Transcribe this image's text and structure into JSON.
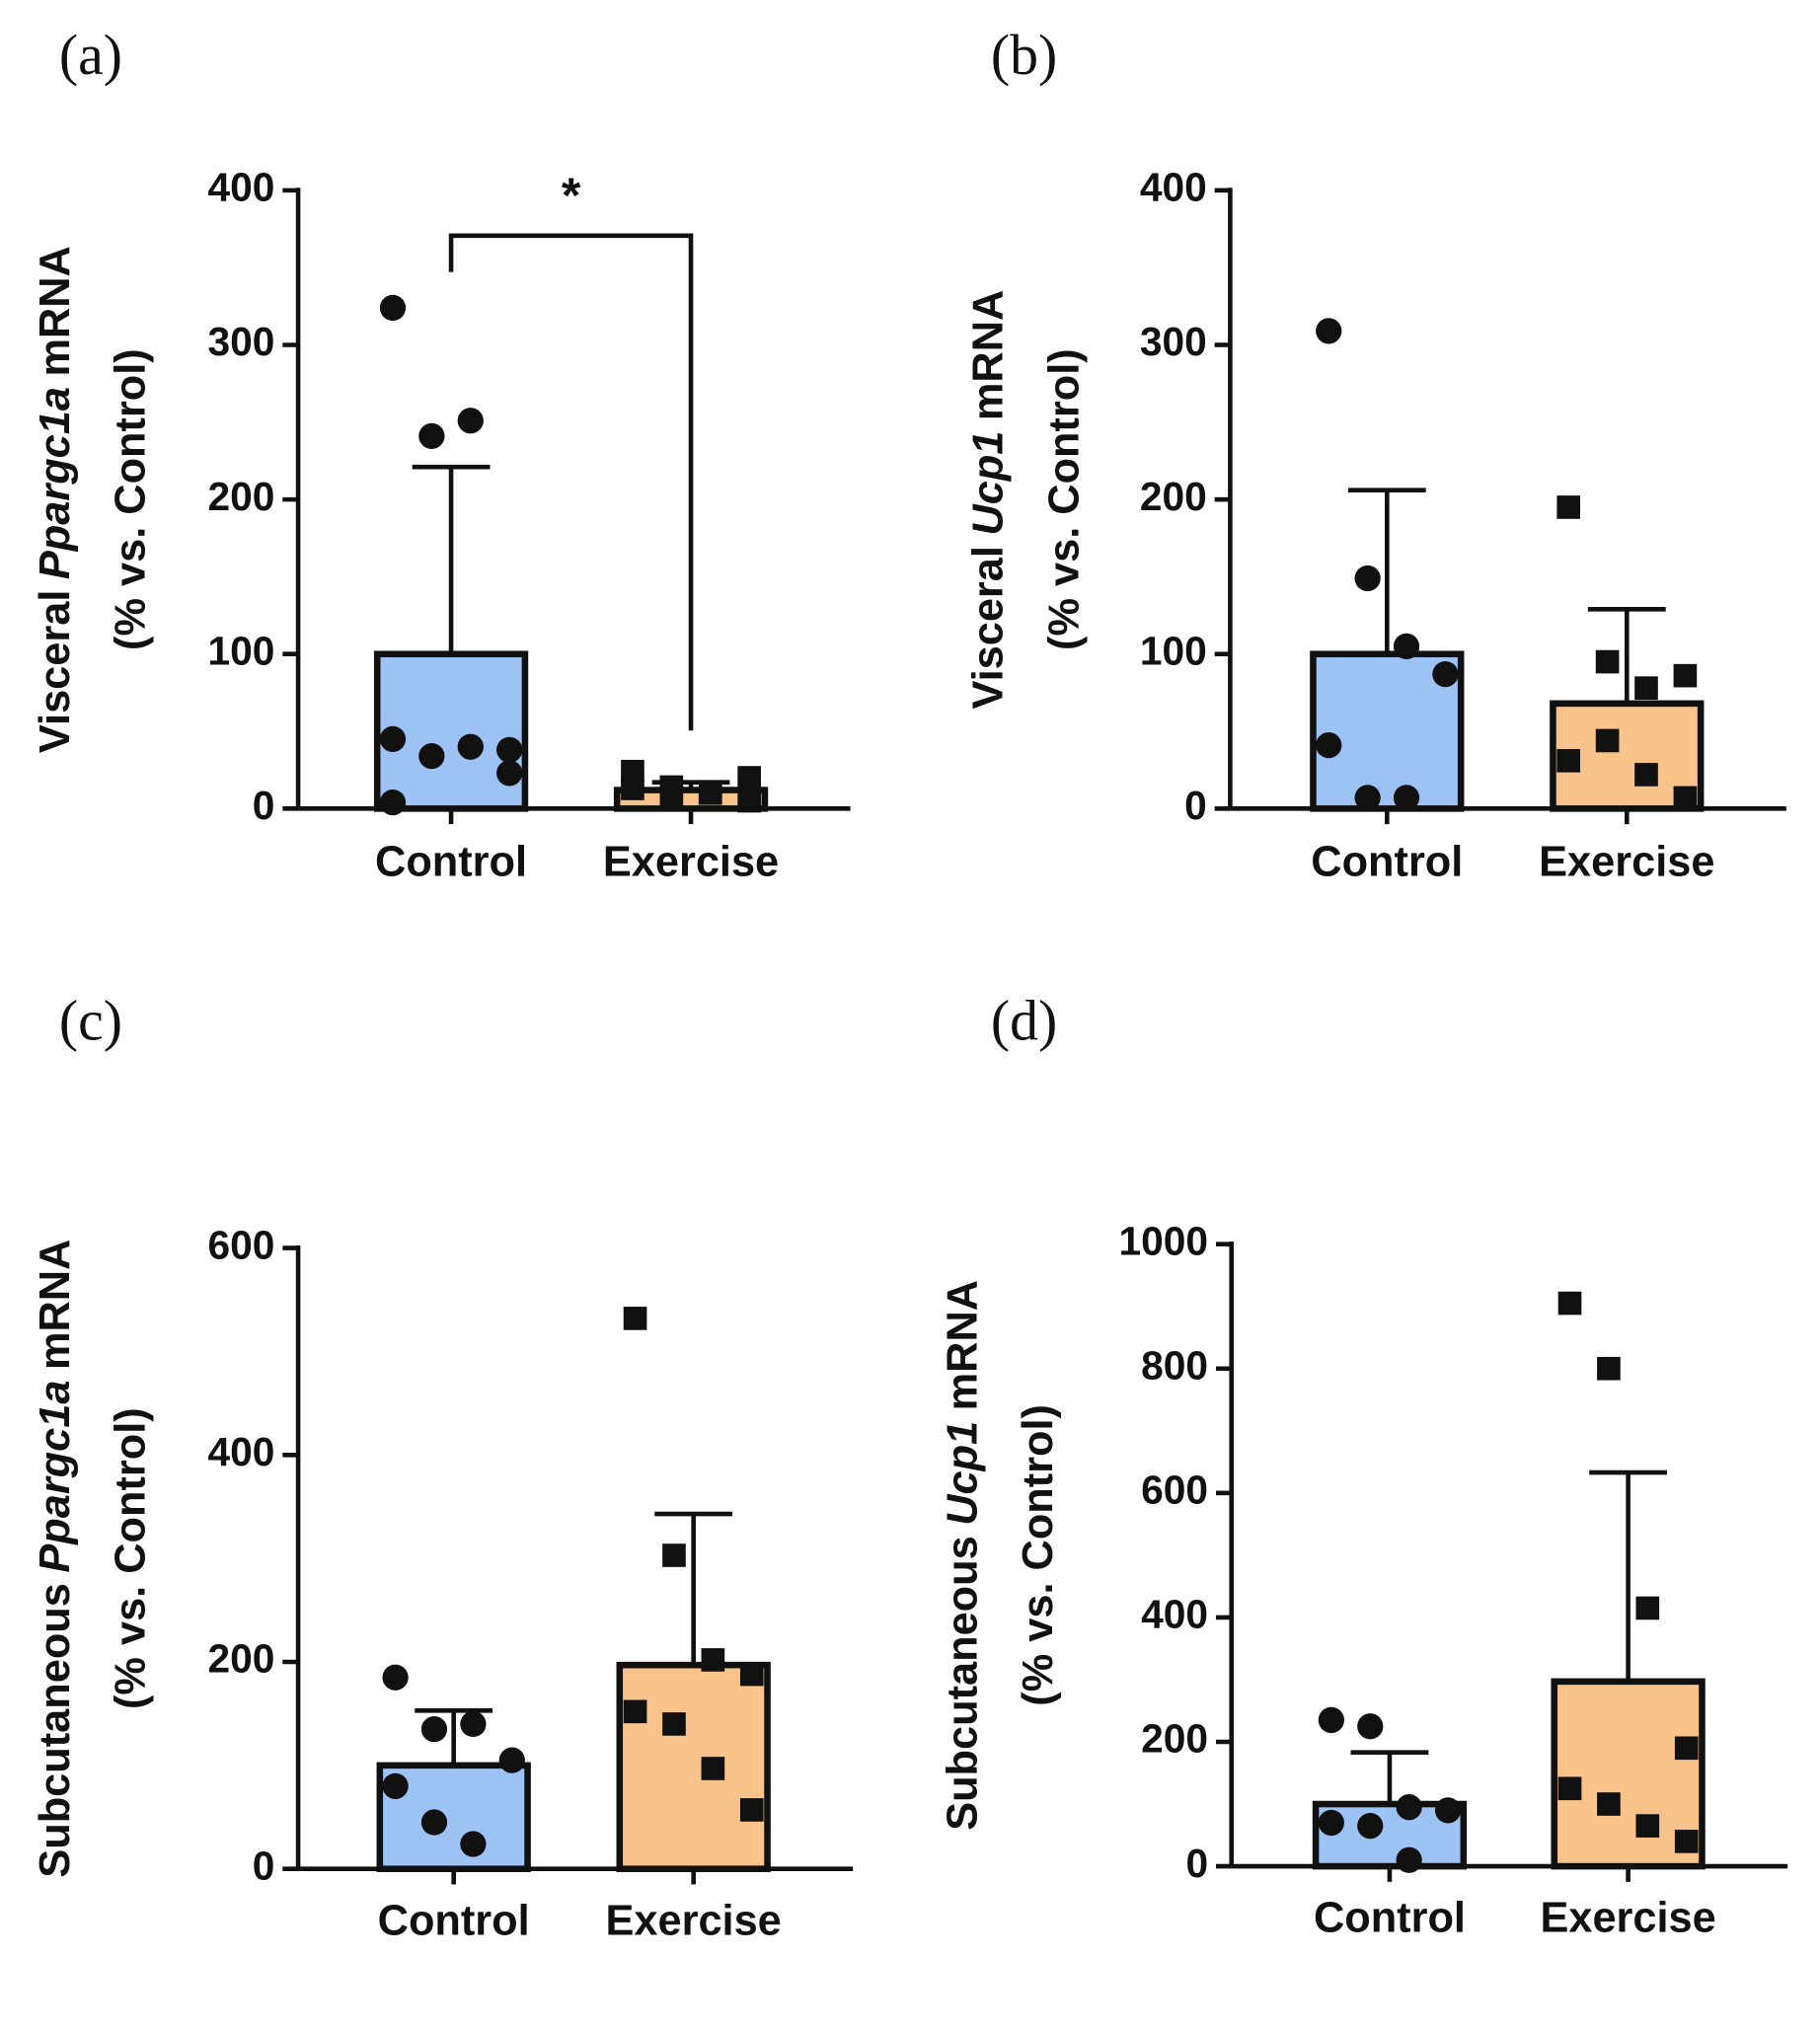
{
  "chart_data": [
    {
      "type": "bar",
      "panel": "(a)",
      "ylabel": {
        "prefix": "Visceral",
        "gene": "Ppargc1a",
        "suffix": "mRNA",
        "unit": "(% vs. Control)"
      },
      "categories": [
        "Control",
        "Exercise"
      ],
      "values": [
        100,
        12
      ],
      "errors": [
        121,
        5
      ],
      "colors": [
        "#9dc3f5",
        "#f8c38a"
      ],
      "point_shapes": [
        "circle",
        "square"
      ],
      "points": [
        [
          324,
          241,
          251,
          38,
          45,
          34,
          40,
          23,
          4
        ],
        [
          24,
          14,
          10,
          20,
          13,
          7,
          10,
          5
        ]
      ],
      "ylim": [
        0,
        400
      ],
      "yticks": [
        0,
        100,
        200,
        300,
        400
      ],
      "significance": "*"
    },
    {
      "type": "bar",
      "panel": "(b)",
      "ylabel": {
        "prefix": "Visceral",
        "gene": "Ucp1",
        "suffix": "mRNA",
        "unit": "(% vs. Control)"
      },
      "categories": [
        "Control",
        "Exercise"
      ],
      "values": [
        100,
        68
      ],
      "errors": [
        106,
        61
      ],
      "colors": [
        "#9dc3f5",
        "#f8c38a"
      ],
      "point_shapes": [
        "circle",
        "square"
      ],
      "points": [
        [
          309,
          149,
          105,
          87,
          41,
          7,
          7
        ],
        [
          195,
          95,
          78,
          86,
          31,
          44,
          22,
          7
        ]
      ],
      "ylim": [
        0,
        400
      ],
      "yticks": [
        0,
        100,
        200,
        300,
        400
      ]
    },
    {
      "type": "bar",
      "panel": "(c)",
      "ylabel": {
        "prefix": "Subcutaneous",
        "gene": "Ppargc1a",
        "suffix": "mRNA",
        "unit": "(% vs. Control)"
      },
      "categories": [
        "Control",
        "Exercise"
      ],
      "values": [
        100,
        197
      ],
      "errors": [
        53,
        146
      ],
      "colors": [
        "#9dc3f5",
        "#f8c38a"
      ],
      "point_shapes": [
        "circle",
        "square"
      ],
      "points": [
        [
          185,
          135,
          140,
          105,
          80,
          45,
          24
        ],
        [
          532,
          303,
          202,
          188,
          152,
          140,
          97,
          57
        ]
      ],
      "ylim": [
        0,
        600
      ],
      "yticks": [
        0,
        200,
        400,
        600
      ]
    },
    {
      "type": "bar",
      "panel": "(d)",
      "ylabel": {
        "prefix": "Subcutaneous",
        "gene": "Ucp1",
        "suffix": "mRNA",
        "unit": "(% vs. Control)"
      },
      "categories": [
        "Control",
        "Exercise"
      ],
      "values": [
        100,
        297
      ],
      "errors": [
        83,
        336
      ],
      "colors": [
        "#9dc3f5",
        "#f8c38a"
      ],
      "point_shapes": [
        "circle",
        "square"
      ],
      "points": [
        [
          235,
          225,
          95,
          90,
          70,
          65,
          10
        ],
        [
          905,
          800,
          415,
          190,
          125,
          100,
          65,
          40
        ]
      ],
      "ylim": [
        0,
        1000
      ],
      "yticks": [
        0,
        200,
        400,
        600,
        800,
        1000
      ]
    }
  ]
}
